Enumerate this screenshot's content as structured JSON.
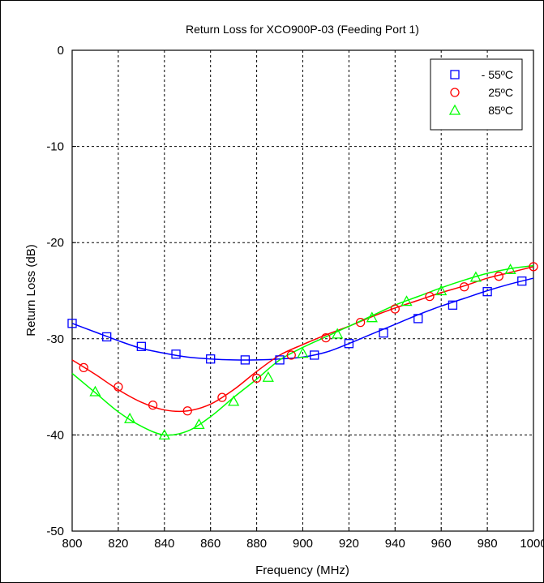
{
  "chart_data": {
    "type": "line",
    "title": "Return Loss for XCO900P-03 (Feeding Port 1)",
    "xlabel": "Frequency (MHz)",
    "ylabel": "Return Loss (dB)",
    "xlim": [
      800,
      1000
    ],
    "ylim": [
      -50,
      0
    ],
    "xticks": [
      800,
      820,
      840,
      860,
      880,
      900,
      920,
      940,
      960,
      980,
      1000
    ],
    "yticks": [
      0,
      -10,
      -20,
      -30,
      -40,
      -50
    ],
    "grid": true,
    "legend": {
      "placement": "top-right"
    },
    "series": [
      {
        "name": "- 55ºC",
        "color": "#0000ff",
        "marker": "square",
        "line": {
          "x": [
            800,
            810,
            820,
            830,
            840,
            850,
            860,
            870,
            880,
            890,
            900,
            910,
            920,
            930,
            940,
            950,
            960,
            970,
            980,
            990,
            1000
          ],
          "y": [
            -28.4,
            -29.3,
            -30.2,
            -31.0,
            -31.5,
            -31.9,
            -32.1,
            -32.2,
            -32.2,
            -32.1,
            -31.9,
            -31.4,
            -30.5,
            -29.5,
            -28.5,
            -27.5,
            -26.6,
            -25.8,
            -25.0,
            -24.3,
            -23.7
          ]
        },
        "markers": {
          "x": [
            800,
            815,
            830,
            845,
            860,
            875,
            890,
            905,
            920,
            935,
            950,
            965,
            980,
            995
          ],
          "y": [
            -28.4,
            -29.8,
            -30.8,
            -31.6,
            -32.1,
            -32.2,
            -32.2,
            -31.7,
            -30.5,
            -29.4,
            -27.9,
            -26.5,
            -25.1,
            -24.0
          ]
        }
      },
      {
        "name": "25ºC",
        "color": "#ff0000",
        "marker": "circle",
        "line": {
          "x": [
            800,
            810,
            820,
            830,
            840,
            850,
            860,
            870,
            880,
            890,
            900,
            910,
            920,
            930,
            940,
            950,
            960,
            970,
            980,
            990,
            1000
          ],
          "y": [
            -32.2,
            -33.7,
            -35.3,
            -36.6,
            -37.4,
            -37.5,
            -36.8,
            -35.3,
            -33.4,
            -31.7,
            -30.6,
            -29.6,
            -28.7,
            -27.7,
            -26.8,
            -26.0,
            -25.2,
            -24.5,
            -23.7,
            -23.1,
            -22.5
          ]
        },
        "markers": {
          "x": [
            805,
            820,
            835,
            850,
            865,
            880,
            895,
            910,
            925,
            940,
            955,
            970,
            985,
            1000
          ],
          "y": [
            -33.0,
            -35.0,
            -36.9,
            -37.5,
            -36.1,
            -34.1,
            -31.7,
            -29.9,
            -28.3,
            -26.9,
            -25.6,
            -24.6,
            -23.5,
            -22.5
          ]
        }
      },
      {
        "name": "85ºC",
        "color": "#00ff00",
        "marker": "triangle",
        "line": {
          "x": [
            800,
            810,
            820,
            830,
            840,
            850,
            860,
            870,
            880,
            890,
            900,
            910,
            920,
            930,
            940,
            950,
            960,
            970,
            980,
            990,
            1000
          ],
          "y": [
            -33.6,
            -35.6,
            -37.6,
            -39.1,
            -40.0,
            -39.6,
            -38.1,
            -36.1,
            -34.2,
            -32.2,
            -30.9,
            -29.8,
            -28.7,
            -27.6,
            -26.5,
            -25.6,
            -24.7,
            -23.9,
            -23.2,
            -22.7,
            -22.4
          ]
        },
        "markers": {
          "x": [
            810,
            825,
            840,
            855,
            870,
            885,
            900,
            915,
            930,
            945,
            960,
            975,
            990
          ],
          "y": [
            -35.5,
            -38.3,
            -40.0,
            -38.9,
            -36.5,
            -34.0,
            -31.5,
            -29.5,
            -27.8,
            -26.1,
            -25.0,
            -23.6,
            -22.8
          ]
        }
      }
    ]
  }
}
